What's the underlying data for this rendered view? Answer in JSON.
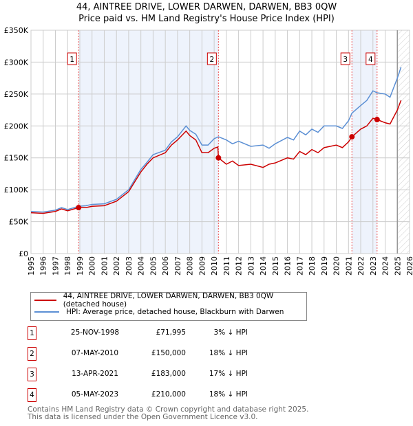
{
  "title": "44, AINTREE DRIVE, LOWER DARWEN, DARWEN, BB3 0QW",
  "subtitle": "Price paid vs. HM Land Registry's House Price Index (HPI)",
  "chart_data": {
    "type": "line",
    "xlim": [
      1995,
      2026
    ],
    "ylim": [
      0,
      350000
    ],
    "yticks": [
      {
        "v": 0,
        "label": "£0"
      },
      {
        "v": 50000,
        "label": "£50K"
      },
      {
        "v": 100000,
        "label": "£100K"
      },
      {
        "v": 150000,
        "label": "£150K"
      },
      {
        "v": 200000,
        "label": "£200K"
      },
      {
        "v": 250000,
        "label": "£250K"
      },
      {
        "v": 300000,
        "label": "£300K"
      },
      {
        "v": 350000,
        "label": "£350K"
      }
    ],
    "xticks": [
      "1995",
      "1996",
      "1997",
      "1998",
      "1999",
      "2000",
      "2001",
      "2002",
      "2003",
      "2004",
      "2005",
      "2006",
      "2007",
      "2008",
      "2009",
      "2010",
      "2011",
      "2012",
      "2013",
      "2014",
      "2015",
      "2016",
      "2017",
      "2018",
      "2019",
      "2020",
      "2021",
      "2022",
      "2023",
      "2024",
      "2025",
      "2026"
    ],
    "shaded": [
      [
        1998.9,
        2010.35
      ],
      [
        2021.28,
        2023.34
      ]
    ],
    "hatched_from": 2025.0,
    "series": [
      {
        "name": "44, AINTREE DRIVE, LOWER DARWEN, DARWEN, BB3 0QW (detached house)",
        "color": "#cc0000",
        "x": [
          1995,
          1996,
          1997,
          1997.5,
          1998,
          1998.9,
          1999.5,
          2000,
          2001,
          2002,
          2003,
          2004,
          2004.5,
          2005,
          2006,
          2006.5,
          2007,
          2007.7,
          2008,
          2008.5,
          2009,
          2009.5,
          2010,
          2010.3,
          2010.35,
          2011,
          2011.5,
          2012,
          2013,
          2014,
          2014.5,
          2015,
          2016,
          2016.5,
          2017,
          2017.5,
          2018,
          2018.5,
          2019,
          2020,
          2020.5,
          2021,
          2021.28,
          2022,
          2022.5,
          2023,
          2023.34,
          2024,
          2024.4,
          2025,
          2025.3
        ],
        "y": [
          64000,
          63000,
          66000,
          70000,
          67000,
          71995,
          72000,
          74000,
          75000,
          82000,
          97000,
          128000,
          140000,
          150000,
          158000,
          170000,
          178000,
          192000,
          185000,
          178000,
          158000,
          158000,
          165000,
          167000,
          150000,
          140000,
          145000,
          138000,
          140000,
          135000,
          140000,
          142000,
          150000,
          148000,
          160000,
          155000,
          163000,
          158000,
          166000,
          170000,
          166000,
          175000,
          183000,
          195000,
          200000,
          212000,
          210000,
          205000,
          203000,
          225000,
          240000
        ]
      },
      {
        "name": "HPI: Average price, detached house, Blackburn with Darwen",
        "color": "#5b8fd4",
        "x": [
          1995,
          1996,
          1997,
          1997.5,
          1998,
          1998.9,
          1999.5,
          2000,
          2001,
          2002,
          2003,
          2004,
          2004.5,
          2005,
          2006,
          2006.5,
          2007,
          2007.7,
          2008,
          2008.5,
          2009,
          2009.5,
          2010,
          2010.35,
          2011,
          2011.5,
          2012,
          2013,
          2014,
          2014.5,
          2015,
          2016,
          2016.5,
          2017,
          2017.5,
          2018,
          2018.5,
          2019,
          2020,
          2020.5,
          2021,
          2021.28,
          2022,
          2022.5,
          2023,
          2023.34,
          2024,
          2024.4,
          2025,
          2025.3
        ],
        "y": [
          66000,
          65000,
          68000,
          72000,
          69000,
          74000,
          75000,
          77000,
          78000,
          85000,
          100000,
          132000,
          143000,
          155000,
          162000,
          175000,
          183000,
          200000,
          193000,
          187000,
          170000,
          170000,
          180000,
          183000,
          178000,
          172000,
          176000,
          168000,
          170000,
          165000,
          172000,
          182000,
          178000,
          192000,
          186000,
          195000,
          190000,
          200000,
          200000,
          196000,
          208000,
          220000,
          232000,
          240000,
          255000,
          252000,
          250000,
          245000,
          275000,
          292000
        ]
      }
    ],
    "markers": [
      {
        "label": "1",
        "x": 1998.9,
        "y": 71995
      },
      {
        "label": "2",
        "x": 2010.35,
        "y": 150000
      },
      {
        "label": "3",
        "x": 2021.28,
        "y": 183000
      },
      {
        "label": "4",
        "x": 2023.34,
        "y": 210000
      }
    ]
  },
  "legend": [
    "44, AINTREE DRIVE, LOWER DARWEN, DARWEN, BB3 0QW (detached house)",
    "HPI: Average price, detached house, Blackburn with Darwen"
  ],
  "sales": [
    {
      "n": "1",
      "date": "25-NOV-1998",
      "price": "£71,995",
      "pct": "3% ↓ HPI"
    },
    {
      "n": "2",
      "date": "07-MAY-2010",
      "price": "£150,000",
      "pct": "18% ↓ HPI"
    },
    {
      "n": "3",
      "date": "13-APR-2021",
      "price": "£183,000",
      "pct": "17% ↓ HPI"
    },
    {
      "n": "4",
      "date": "05-MAY-2023",
      "price": "£210,000",
      "pct": "18% ↓ HPI"
    }
  ],
  "footer": [
    "Contains HM Land Registry data © Crown copyright and database right 2025.",
    "This data is licensed under the Open Government Licence v3.0."
  ]
}
